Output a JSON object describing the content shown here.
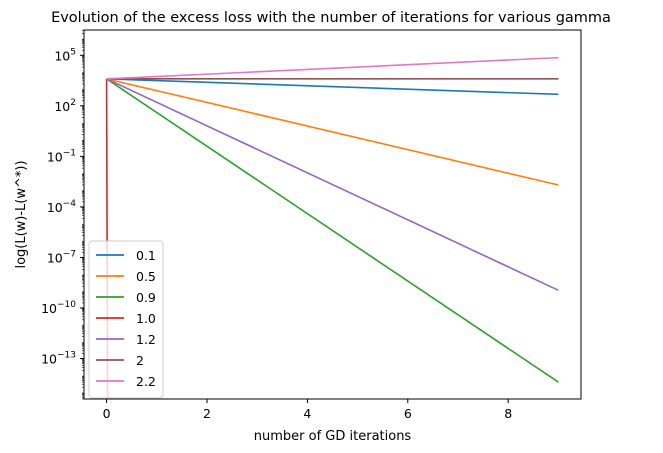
{
  "chart_data": {
    "type": "line",
    "title": "Evolution of the excess loss with the number of iterations for various gamma",
    "xlabel": "number of GD iterations",
    "ylabel": "log(L(w)-L(w^*))",
    "yscale": "log",
    "xlim": [
      -0.45,
      9.45
    ],
    "ylim_exponent": [
      -15.4,
      6.5
    ],
    "x_ticks": [
      0,
      2,
      4,
      6,
      8
    ],
    "y_tick_exponents": [
      5,
      2,
      -1,
      -4,
      -7,
      -10,
      -13
    ],
    "grid": false,
    "legend_position": "lower-left",
    "series": [
      {
        "name": "0.1",
        "color": "#1f77b4",
        "x": [
          0,
          9
        ],
        "y_exponent": [
          3.6,
          2.68
        ]
      },
      {
        "name": "0.5",
        "color": "#ff7f0e",
        "x": [
          0,
          9
        ],
        "y_exponent": [
          3.6,
          -2.7
        ]
      },
      {
        "name": "0.9",
        "color": "#2ca02c",
        "x": [
          0,
          9
        ],
        "y_exponent": [
          3.6,
          -14.4
        ]
      },
      {
        "name": "1.0",
        "color": "#d62728",
        "x": [
          0,
          0.02
        ],
        "y_exponent": [
          3.6,
          -15.4
        ]
      },
      {
        "name": "1.2",
        "color": "#9467bd",
        "x": [
          0,
          9
        ],
        "y_exponent": [
          3.6,
          -8.95
        ]
      },
      {
        "name": "2",
        "color": "#8c564b",
        "x": [
          0,
          9
        ],
        "y_exponent": [
          3.6,
          3.6
        ]
      },
      {
        "name": "2.2",
        "color": "#e377c2",
        "x": [
          0,
          9
        ],
        "y_exponent": [
          3.6,
          4.86
        ]
      }
    ]
  }
}
